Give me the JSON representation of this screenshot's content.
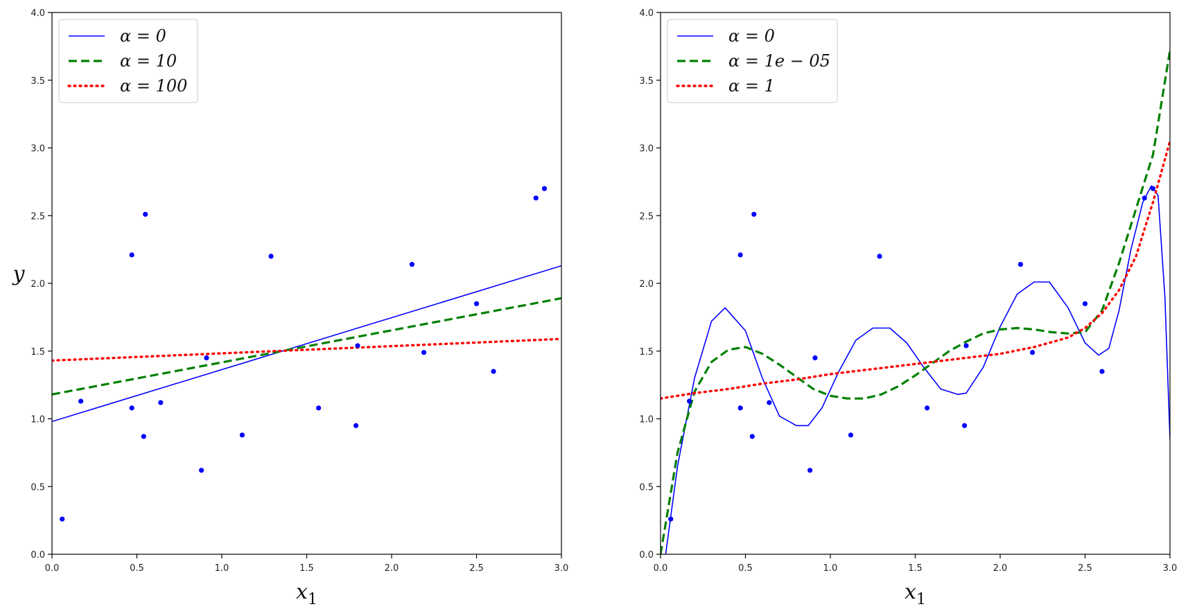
{
  "chart_data": [
    {
      "type": "scatter",
      "xlabel": "x",
      "xlabel_sub": "1",
      "ylabel": "y",
      "xlim": [
        0.0,
        3.0
      ],
      "ylim": [
        0.0,
        4.0
      ],
      "xticks": [
        0.0,
        0.5,
        1.0,
        1.5,
        2.0,
        2.5,
        3.0
      ],
      "yticks": [
        0.0,
        0.5,
        1.0,
        1.5,
        2.0,
        2.5,
        3.0,
        3.5,
        4.0
      ],
      "xtick_labels": [
        "0.0",
        "0.5",
        "1.0",
        "1.5",
        "2.0",
        "2.5",
        "3.0"
      ],
      "ytick_labels": [
        "0.0",
        "0.5",
        "1.0",
        "1.5",
        "2.0",
        "2.5",
        "3.0",
        "3.5",
        "4.0"
      ],
      "legend_position": "top-left",
      "grid": false,
      "points": {
        "color": "#0000ff",
        "x": [
          0.06,
          0.17,
          0.47,
          0.47,
          0.54,
          0.55,
          0.64,
          0.88,
          0.91,
          1.12,
          1.29,
          1.57,
          1.79,
          1.8,
          2.12,
          2.19,
          2.5,
          2.6,
          2.85,
          2.9
        ],
        "y": [
          0.26,
          1.13,
          2.21,
          1.08,
          0.87,
          2.51,
          1.12,
          0.62,
          1.45,
          0.88,
          2.2,
          1.08,
          0.95,
          1.54,
          2.14,
          1.49,
          1.85,
          1.35,
          2.63,
          2.7
        ]
      },
      "series": [
        {
          "name": "α = 0",
          "legend_label": "α = 0",
          "color": "#0000ff",
          "style": "solid",
          "x": [
            0.0,
            3.0
          ],
          "y": [
            0.98,
            2.13
          ]
        },
        {
          "name": "α = 10",
          "legend_label": "α = 10",
          "color": "#008000",
          "style": "dashed",
          "x": [
            0.0,
            3.0
          ],
          "y": [
            1.18,
            1.89
          ]
        },
        {
          "name": "α = 100",
          "legend_label": "α = 100",
          "color": "#ff0000",
          "style": "dotted",
          "x": [
            0.0,
            3.0
          ],
          "y": [
            1.43,
            1.59
          ]
        }
      ]
    },
    {
      "type": "scatter",
      "xlabel": "x",
      "xlabel_sub": "1",
      "ylabel": "",
      "xlim": [
        0.0,
        3.0
      ],
      "ylim": [
        0.0,
        4.0
      ],
      "xticks": [
        0.0,
        0.5,
        1.0,
        1.5,
        2.0,
        2.5,
        3.0
      ],
      "yticks": [
        0.0,
        0.5,
        1.0,
        1.5,
        2.0,
        2.5,
        3.0,
        3.5,
        4.0
      ],
      "xtick_labels": [
        "0.0",
        "0.5",
        "1.0",
        "1.5",
        "2.0",
        "2.5",
        "3.0"
      ],
      "ytick_labels": [
        "0.0",
        "0.5",
        "1.0",
        "1.5",
        "2.0",
        "2.5",
        "3.0",
        "3.5",
        "4.0"
      ],
      "legend_position": "top-left",
      "grid": false,
      "points": {
        "color": "#0000ff",
        "x": [
          0.06,
          0.17,
          0.47,
          0.47,
          0.54,
          0.55,
          0.64,
          0.88,
          0.91,
          1.12,
          1.29,
          1.57,
          1.79,
          1.8,
          2.12,
          2.19,
          2.5,
          2.6,
          2.85,
          2.9
        ],
        "y": [
          0.26,
          1.13,
          2.21,
          1.08,
          0.87,
          2.51,
          1.12,
          0.62,
          1.45,
          0.88,
          2.2,
          1.08,
          0.95,
          1.54,
          2.14,
          1.49,
          1.85,
          1.35,
          2.63,
          2.7
        ]
      },
      "series": [
        {
          "name": "α = 0",
          "legend_label": "α = 0",
          "color": "#0000ff",
          "style": "solid",
          "x": [
            0.03,
            0.1,
            0.2,
            0.3,
            0.38,
            0.5,
            0.6,
            0.7,
            0.8,
            0.87,
            0.95,
            1.05,
            1.15,
            1.25,
            1.35,
            1.45,
            1.55,
            1.65,
            1.75,
            1.8,
            1.9,
            2.0,
            2.1,
            2.2,
            2.29,
            2.4,
            2.5,
            2.58,
            2.64,
            2.7,
            2.77,
            2.84,
            2.89,
            2.93,
            2.97,
            3.0
          ],
          "y": [
            0.0,
            0.65,
            1.3,
            1.72,
            1.82,
            1.65,
            1.3,
            1.02,
            0.95,
            0.95,
            1.08,
            1.35,
            1.58,
            1.67,
            1.67,
            1.56,
            1.38,
            1.22,
            1.18,
            1.19,
            1.38,
            1.68,
            1.92,
            2.01,
            2.01,
            1.82,
            1.56,
            1.47,
            1.52,
            1.8,
            2.25,
            2.6,
            2.72,
            2.65,
            1.9,
            0.85
          ]
        },
        {
          "name": "α = 1e − 05",
          "legend_label": "α = 1e − 05",
          "color": "#008000",
          "style": "dashed",
          "x": [
            0.0,
            0.1,
            0.2,
            0.3,
            0.4,
            0.5,
            0.6,
            0.7,
            0.8,
            0.9,
            1.0,
            1.1,
            1.2,
            1.3,
            1.4,
            1.5,
            1.6,
            1.7,
            1.8,
            1.9,
            2.0,
            2.1,
            2.2,
            2.3,
            2.4,
            2.5,
            2.6,
            2.7,
            2.8,
            2.9,
            3.0
          ],
          "y": [
            0.0,
            0.75,
            1.2,
            1.42,
            1.51,
            1.53,
            1.48,
            1.4,
            1.31,
            1.22,
            1.17,
            1.15,
            1.15,
            1.18,
            1.24,
            1.32,
            1.41,
            1.5,
            1.57,
            1.63,
            1.66,
            1.67,
            1.66,
            1.64,
            1.63,
            1.64,
            1.8,
            2.15,
            2.55,
            2.95,
            3.72
          ]
        },
        {
          "name": "α = 1",
          "legend_label": "α = 1",
          "color": "#ff0000",
          "style": "dotted",
          "x": [
            0.0,
            0.2,
            0.4,
            0.6,
            0.8,
            1.0,
            1.2,
            1.4,
            1.6,
            1.8,
            2.0,
            2.2,
            2.4,
            2.5,
            2.6,
            2.7,
            2.8,
            2.9,
            3.0
          ],
          "y": [
            1.15,
            1.19,
            1.22,
            1.26,
            1.29,
            1.33,
            1.36,
            1.39,
            1.42,
            1.45,
            1.48,
            1.53,
            1.6,
            1.67,
            1.78,
            1.95,
            2.2,
            2.6,
            3.05
          ]
        }
      ]
    }
  ]
}
